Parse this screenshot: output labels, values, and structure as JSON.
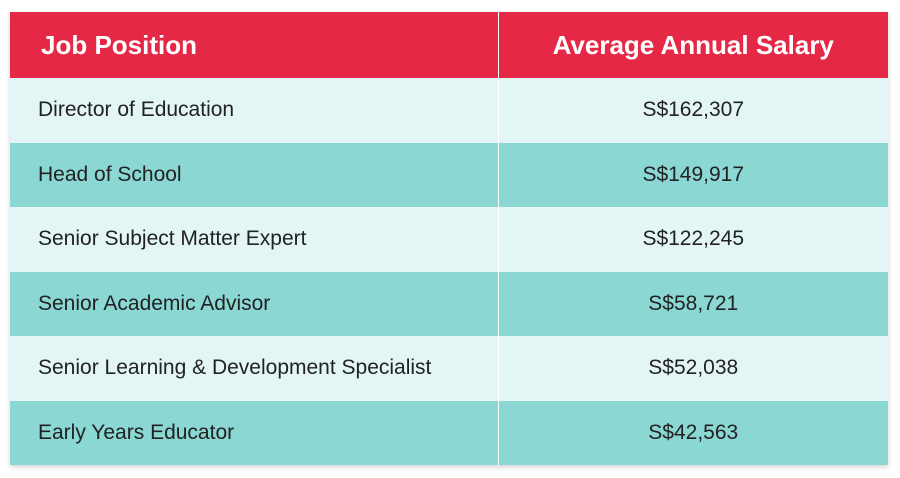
{
  "table": {
    "headers": {
      "job": "Job Position",
      "salary": "Average Annual Salary"
    },
    "rows": [
      {
        "job": "Director of Education",
        "salary": "S$162,307"
      },
      {
        "job": "Head of School",
        "salary": "S$149,917"
      },
      {
        "job": "Senior Subject Matter Expert",
        "salary": "S$122,245"
      },
      {
        "job": "Senior Academic Advisor",
        "salary": "S$58,721"
      },
      {
        "job": "Senior Learning & Development Specialist",
        "salary": "S$52,038"
      },
      {
        "job": "Early Years Educator",
        "salary": "S$42,563"
      }
    ]
  },
  "colors": {
    "header_bg": "#e42846",
    "row_light": "#e3f5f5",
    "row_dark": "#8ad7d4"
  }
}
